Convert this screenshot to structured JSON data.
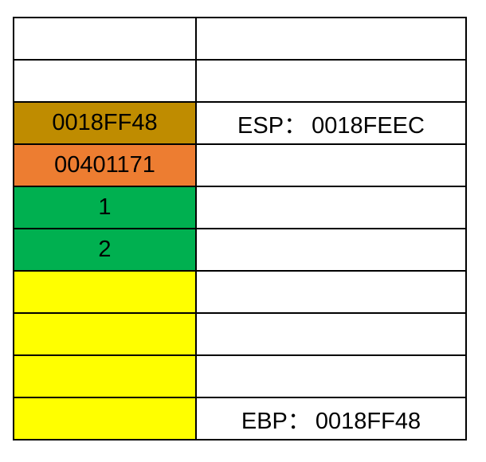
{
  "rows": [
    {
      "cell": "",
      "cell_color": "#ffffff",
      "note_label": "",
      "note_value": ""
    },
    {
      "cell": "",
      "cell_color": "#ffffff",
      "note_label": "",
      "note_value": ""
    },
    {
      "cell": "0018FF48",
      "cell_color": "#bf8c00",
      "note_label": "ESP",
      "note_value": "0018FEEC"
    },
    {
      "cell": "00401171",
      "cell_color": "#ed7d31",
      "note_label": "",
      "note_value": ""
    },
    {
      "cell": "1",
      "cell_color": "#00b050",
      "note_label": "",
      "note_value": ""
    },
    {
      "cell": "2",
      "cell_color": "#00b050",
      "note_label": "",
      "note_value": ""
    },
    {
      "cell": "",
      "cell_color": "#ffff00",
      "note_label": "",
      "note_value": ""
    },
    {
      "cell": "",
      "cell_color": "#ffff00",
      "note_label": "",
      "note_value": ""
    },
    {
      "cell": "",
      "cell_color": "#ffff00",
      "note_label": "",
      "note_value": ""
    },
    {
      "cell": "",
      "cell_color": "#ffff00",
      "note_label": "EBP",
      "note_value": "0018FF48"
    }
  ]
}
